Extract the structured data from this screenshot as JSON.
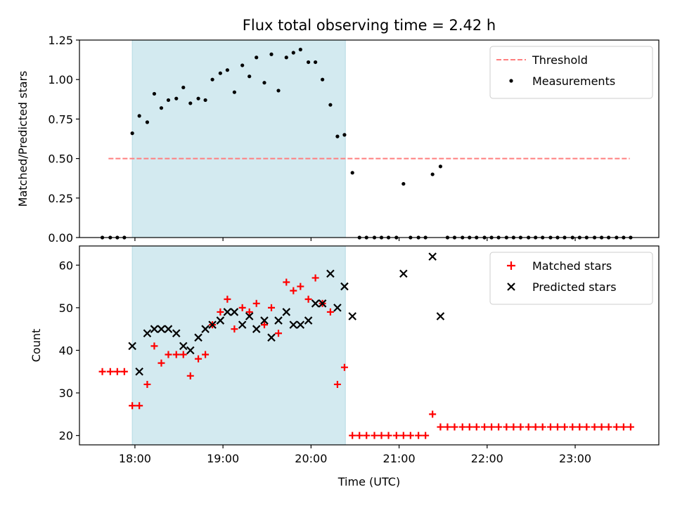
{
  "title": "Flux total observing time = 2.42 h",
  "chart_data": [
    {
      "type": "scatter",
      "panel": "top",
      "ylabel": "Matched/Predicted stars",
      "ylim": [
        0,
        1.25
      ],
      "yticks": [
        0,
        0.25,
        0.5,
        0.75,
        1.0,
        1.25
      ],
      "ytick_labels": [
        "0.00",
        "0.25",
        "0.50",
        "0.75",
        "1.00",
        "1.25"
      ],
      "legend_position": "top-right",
      "threshold": {
        "name": "Threshold",
        "value": 0.5,
        "x_start": 17.7,
        "x_end": 23.62,
        "color": "#ff7f7f",
        "style": "dashed"
      },
      "highlight_span": {
        "x_start": 17.97,
        "x_end": 20.39,
        "color": "#d3eaf0"
      },
      "series": [
        {
          "name": "Measurements",
          "color": "#000000",
          "marker": "dot",
          "x": [
            17.63,
            17.72,
            17.8,
            17.88,
            17.97,
            18.05,
            18.14,
            18.22,
            18.3,
            18.38,
            18.47,
            18.55,
            18.63,
            18.72,
            18.8,
            18.88,
            18.97,
            19.05,
            19.13,
            19.22,
            19.3,
            19.38,
            19.47,
            19.55,
            19.63,
            19.72,
            19.8,
            19.88,
            19.97,
            20.05,
            20.13,
            20.22,
            20.3,
            20.38,
            20.47,
            20.55,
            20.63,
            20.72,
            20.8,
            20.88,
            20.97,
            21.05,
            21.13,
            21.22,
            21.3,
            21.38,
            21.47,
            21.55,
            21.63,
            21.72,
            21.8,
            21.88,
            21.97,
            22.05,
            22.13,
            22.22,
            22.3,
            22.38,
            22.47,
            22.55,
            22.63,
            22.72,
            22.8,
            22.88,
            22.97,
            23.05,
            23.13,
            23.22,
            23.3,
            23.38,
            23.47,
            23.55,
            23.63
          ],
          "y": [
            0,
            0,
            0,
            0,
            0.66,
            0.77,
            0.73,
            0.91,
            0.82,
            0.87,
            0.88,
            0.95,
            0.85,
            0.88,
            0.87,
            1.0,
            1.04,
            1.06,
            0.92,
            1.09,
            1.02,
            1.14,
            0.98,
            1.16,
            0.93,
            1.14,
            1.17,
            1.19,
            1.11,
            1.11,
            1.0,
            0.84,
            0.64,
            0.65,
            0.41,
            0,
            0,
            0,
            0,
            0,
            0,
            0.34,
            0,
            0,
            0,
            0.4,
            0.45,
            0,
            0,
            0,
            0,
            0,
            0,
            0,
            0,
            0,
            0,
            0,
            0,
            0,
            0,
            0,
            0,
            0,
            0,
            0,
            0,
            0,
            0,
            0,
            0,
            0,
            0
          ]
        }
      ]
    },
    {
      "type": "scatter",
      "panel": "bottom",
      "xlabel": "Time (UTC)",
      "ylabel": "Count",
      "xlim": [
        17.37,
        23.95
      ],
      "xticks": [
        18,
        19,
        20,
        21,
        22,
        23
      ],
      "xtick_labels": [
        "18:00",
        "19:00",
        "20:00",
        "21:00",
        "22:00",
        "23:00"
      ],
      "ylim": [
        17.8,
        64.5
      ],
      "yticks": [
        20,
        30,
        40,
        50,
        60
      ],
      "ytick_labels": [
        "20",
        "30",
        "40",
        "50",
        "60"
      ],
      "legend_position": "top-right",
      "highlight_span": {
        "x_start": 17.97,
        "x_end": 20.39,
        "color": "#d3eaf0"
      },
      "series": [
        {
          "name": "Matched stars",
          "color": "#ff0000",
          "marker": "plus",
          "x": [
            17.63,
            17.72,
            17.8,
            17.88,
            17.97,
            18.05,
            18.14,
            18.22,
            18.3,
            18.38,
            18.47,
            18.55,
            18.63,
            18.72,
            18.8,
            18.88,
            18.97,
            19.05,
            19.13,
            19.22,
            19.3,
            19.38,
            19.47,
            19.55,
            19.63,
            19.72,
            19.8,
            19.88,
            19.97,
            20.05,
            20.13,
            20.22,
            20.3,
            20.38,
            20.47,
            20.55,
            20.63,
            20.72,
            20.8,
            20.88,
            20.97,
            21.05,
            21.13,
            21.22,
            21.3,
            21.38,
            21.47,
            21.55,
            21.63,
            21.72,
            21.8,
            21.88,
            21.97,
            22.05,
            22.13,
            22.22,
            22.3,
            22.38,
            22.47,
            22.55,
            22.63,
            22.72,
            22.8,
            22.88,
            22.97,
            23.05,
            23.13,
            23.22,
            23.3,
            23.38,
            23.47,
            23.55,
            23.63
          ],
          "y": [
            35,
            35,
            35,
            35,
            27,
            27,
            32,
            41,
            37,
            39,
            39,
            39,
            34,
            38,
            39,
            46,
            49,
            52,
            45,
            50,
            49,
            51,
            46,
            50,
            44,
            56,
            54,
            55,
            52,
            57,
            51,
            49,
            32,
            36,
            20,
            20,
            20,
            20,
            20,
            20,
            20,
            20,
            20,
            20,
            20,
            25,
            22,
            22,
            22,
            22,
            22,
            22,
            22,
            22,
            22,
            22,
            22,
            22,
            22,
            22,
            22,
            22,
            22,
            22,
            22,
            22,
            22,
            22,
            22,
            22,
            22,
            22,
            22
          ]
        },
        {
          "name": "Predicted stars",
          "color": "#000000",
          "marker": "cross",
          "x": [
            17.97,
            18.05,
            18.14,
            18.22,
            18.3,
            18.38,
            18.47,
            18.55,
            18.63,
            18.72,
            18.8,
            18.88,
            18.97,
            19.05,
            19.13,
            19.22,
            19.3,
            19.38,
            19.47,
            19.55,
            19.63,
            19.72,
            19.8,
            19.88,
            19.97,
            20.05,
            20.13,
            20.22,
            20.3,
            20.38,
            20.47,
            21.05,
            21.38,
            21.47
          ],
          "y": [
            41,
            35,
            44,
            45,
            45,
            45,
            44,
            41,
            40,
            43,
            45,
            46,
            47,
            49,
            49,
            46,
            48,
            45,
            47,
            43,
            47,
            49,
            46,
            46,
            47,
            51,
            51,
            58,
            50,
            55,
            48,
            58,
            62,
            48
          ]
        }
      ]
    }
  ]
}
